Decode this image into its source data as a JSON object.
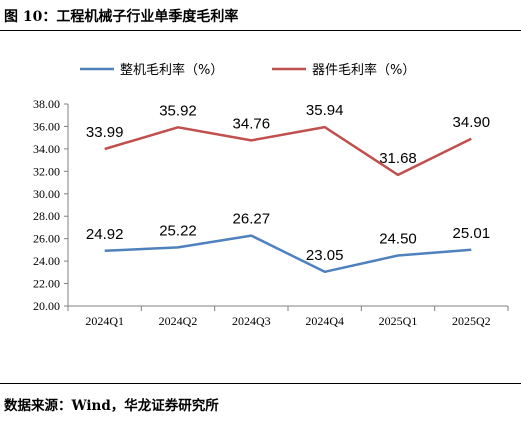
{
  "figure": {
    "title": "图 10：工程机械子行业单季度毛利率",
    "source": "数据来源：Wind，华龙证券研究所"
  },
  "chart_data": {
    "type": "line",
    "categories": [
      "2024Q1",
      "2024Q2",
      "2024Q3",
      "2024Q4",
      "2025Q1",
      "2025Q2"
    ],
    "series": [
      {
        "name": "整机毛利率（%）",
        "color": "#4F81BD",
        "values": [
          24.92,
          25.22,
          26.27,
          23.05,
          24.5,
          25.01
        ],
        "labels": [
          "24.92",
          "25.22",
          "26.27",
          "23.05",
          "24.50",
          "25.01"
        ]
      },
      {
        "name": "器件毛利率（%）",
        "color": "#C0504D",
        "values": [
          33.99,
          35.92,
          34.76,
          35.94,
          31.68,
          34.9
        ],
        "labels": [
          "33.99",
          "35.92",
          "34.76",
          "35.94",
          "31.68",
          "34.90"
        ]
      }
    ],
    "ylim": [
      20,
      38
    ],
    "yticks": [
      "20.00",
      "22.00",
      "24.00",
      "26.00",
      "28.00",
      "30.00",
      "32.00",
      "34.00",
      "36.00",
      "38.00"
    ],
    "grid": false,
    "legend_position": "top"
  }
}
